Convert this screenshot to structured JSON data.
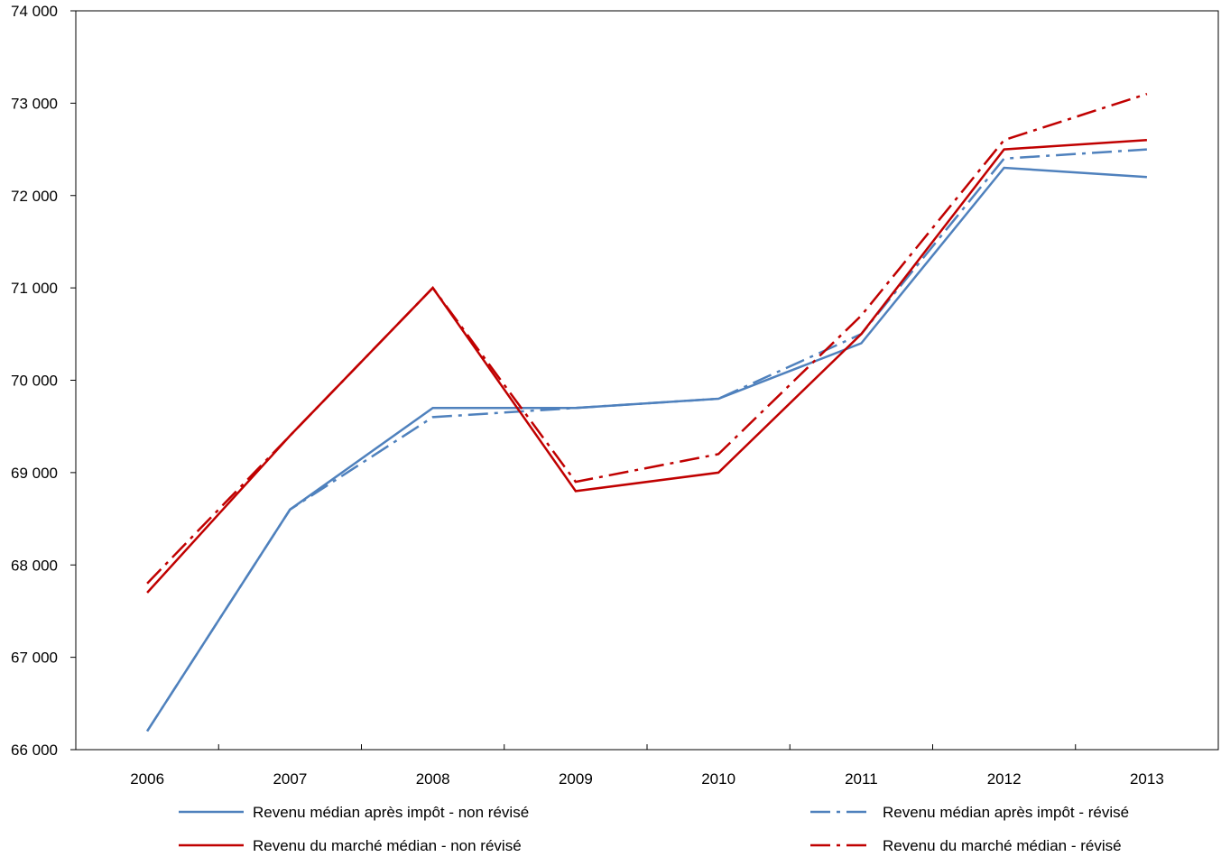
{
  "chart_data": {
    "type": "line",
    "categories": [
      "2006",
      "2007",
      "2008",
      "2009",
      "2010",
      "2011",
      "2012",
      "2013"
    ],
    "ylim": [
      66000,
      74000
    ],
    "yticks": [
      66000,
      67000,
      68000,
      69000,
      70000,
      71000,
      72000,
      73000,
      74000
    ],
    "ytick_labels": [
      "66 000",
      "67 000",
      "68 000",
      "69 000",
      "70 000",
      "71 000",
      "72 000",
      "73 000",
      "74 000"
    ],
    "grid": false,
    "legend_position": "bottom",
    "series": [
      {
        "name": "Revenu médian après impôt  - non révisé",
        "color": "#4F81BD",
        "style": "solid",
        "values": [
          66200,
          68600,
          69700,
          69700,
          69800,
          70400,
          72300,
          72200
        ]
      },
      {
        "name": "Revenu médian après impôt  - révisé",
        "color": "#4F81BD",
        "style": "dashdot",
        "values": [
          66200,
          68600,
          69600,
          69700,
          69800,
          70500,
          72400,
          72500
        ]
      },
      {
        "name": "Revenu du marché médian - non révisé",
        "color": "#C00000",
        "style": "solid",
        "values": [
          67700,
          69400,
          71000,
          68800,
          69000,
          70500,
          72500,
          72600
        ]
      },
      {
        "name": "Revenu du marché médian - révisé",
        "color": "#C00000",
        "style": "dashdot",
        "values": [
          67800,
          69400,
          71000,
          68900,
          69200,
          70700,
          72600,
          73100
        ]
      }
    ]
  }
}
